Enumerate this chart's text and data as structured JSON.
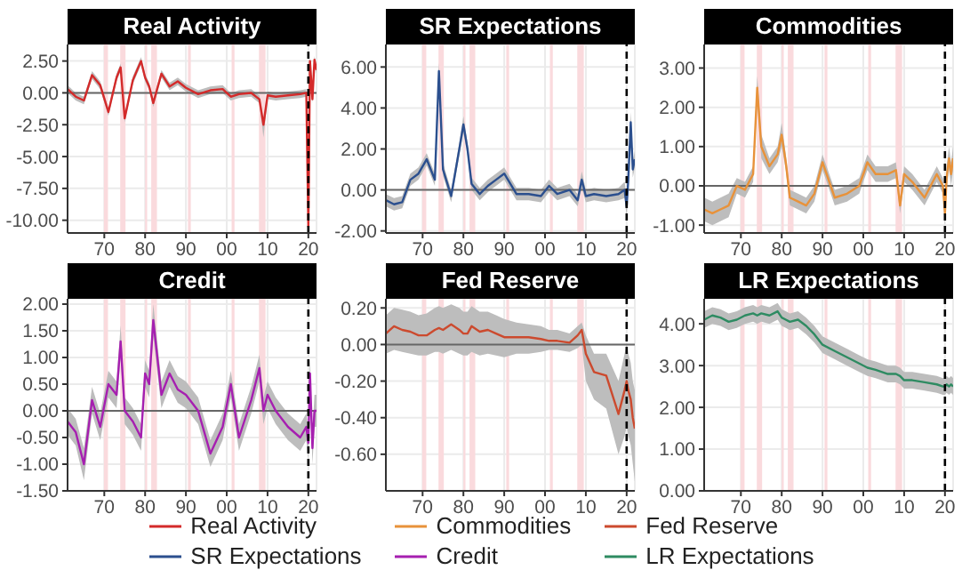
{
  "chart_data": [
    {
      "type": "line",
      "title": "Real Activity",
      "x": [
        1961,
        1963,
        1965,
        1967,
        1969,
        1971,
        1973,
        1974,
        1975,
        1977,
        1979,
        1980,
        1981,
        1982,
        1984,
        1986,
        1988,
        1990,
        1993,
        1996,
        1999,
        2001,
        2003,
        2006,
        2008,
        2009,
        2010,
        2012,
        2015,
        2018,
        2019.5,
        2020,
        2020.4,
        2021,
        2021.5,
        2022
      ],
      "series": [
        {
          "name": "Real Activity",
          "color": "#d42a2a",
          "values": [
            0.3,
            -0.3,
            -0.6,
            1.4,
            0.6,
            -1.5,
            1.2,
            2.0,
            -2.0,
            1.0,
            2.5,
            1.2,
            0.5,
            -0.8,
            1.5,
            0.5,
            0.9,
            0.4,
            -0.1,
            0.2,
            0.3,
            -0.3,
            -0.1,
            0.0,
            -0.5,
            -2.5,
            -0.2,
            -0.3,
            -0.2,
            -0.1,
            0.0,
            -10.5,
            2.5,
            -0.5,
            2.6,
            1.8
          ],
          "lower": [
            0.0,
            -0.6,
            -0.9,
            1.1,
            0.3,
            -1.8,
            0.9,
            1.7,
            -2.3,
            0.7,
            2.2,
            0.9,
            0.2,
            -1.1,
            1.2,
            0.2,
            0.6,
            0.1,
            -0.4,
            -0.1,
            0.0,
            -0.6,
            -0.4,
            -0.3,
            -0.8,
            -3.5,
            -0.5,
            -0.6,
            -0.5,
            -0.4,
            -0.3,
            -10.8,
            2.2,
            -0.8,
            2.3,
            1.5
          ],
          "upper": [
            0.6,
            0.0,
            -0.3,
            1.7,
            0.9,
            -1.2,
            1.5,
            2.3,
            -1.7,
            1.3,
            2.8,
            1.5,
            0.8,
            -0.5,
            1.8,
            0.8,
            1.2,
            0.7,
            0.2,
            0.5,
            0.6,
            0.0,
            0.2,
            0.3,
            -0.2,
            -2.0,
            0.1,
            0.0,
            0.1,
            0.2,
            0.3,
            -10.2,
            2.8,
            -0.2,
            2.9,
            2.1
          ]
        }
      ],
      "xlim": [
        1961,
        2022
      ],
      "xticks": [
        {
          "value": 1970,
          "label": "70"
        },
        {
          "value": 1980,
          "label": "80"
        },
        {
          "value": 1990,
          "label": "90"
        },
        {
          "value": 2000,
          "label": "00"
        },
        {
          "value": 2010,
          "label": "10"
        },
        {
          "value": 2020,
          "label": "20"
        }
      ],
      "ylim": [
        -11,
        3.8
      ],
      "yticks": [
        {
          "value": -10,
          "label": "-10.00"
        },
        {
          "value": -7.5,
          "label": "-7.50"
        },
        {
          "value": -5,
          "label": "-5.00"
        },
        {
          "value": -2.5,
          "label": "-2.50"
        },
        {
          "value": 0,
          "label": "0.00"
        },
        {
          "value": 2.5,
          "label": "2.50"
        }
      ],
      "grid": true,
      "legend": "bottom",
      "ref_lines": [
        {
          "axis": "y",
          "value": 0,
          "color": "#666666"
        },
        {
          "axis": "x",
          "value": 2020,
          "color": "#000000",
          "line_style": "dashed"
        }
      ],
      "bands": [
        {
          "axis": "x",
          "from": 1969.9,
          "to": 1970.9,
          "color": "#fadadd"
        },
        {
          "axis": "x",
          "from": 1973.9,
          "to": 1975.2,
          "color": "#fadadd"
        },
        {
          "axis": "x",
          "from": 1980.0,
          "to": 1980.5,
          "color": "#fadadd"
        },
        {
          "axis": "x",
          "from": 1981.5,
          "to": 1982.9,
          "color": "#fadadd"
        },
        {
          "axis": "x",
          "from": 1990.5,
          "to": 1991.2,
          "color": "#fadadd"
        },
        {
          "axis": "x",
          "from": 2001.2,
          "to": 2001.9,
          "color": "#fadadd"
        },
        {
          "axis": "x",
          "from": 2007.9,
          "to": 2009.5,
          "color": "#fadadd"
        }
      ]
    },
    {
      "type": "line",
      "title": "SR Expectations",
      "x": [
        1961,
        1963,
        1965,
        1967,
        1969,
        1971,
        1973,
        1974,
        1975,
        1977,
        1979,
        1980,
        1981,
        1982,
        1984,
        1986,
        1988,
        1990,
        1993,
        1996,
        1999,
        2001,
        2003,
        2006,
        2008,
        2009,
        2010,
        2012,
        2015,
        2018,
        2019.5,
        2020,
        2020.4,
        2021,
        2021.5,
        2022
      ],
      "series": [
        {
          "name": "SR Expectations",
          "color": "#2b4f8e",
          "values": [
            -0.5,
            -0.7,
            -0.6,
            0.5,
            0.8,
            1.5,
            0.5,
            5.8,
            1.0,
            -0.3,
            2.0,
            3.2,
            2.0,
            0.3,
            -0.2,
            0.2,
            0.5,
            0.8,
            -0.2,
            -0.2,
            -0.3,
            0.2,
            -0.2,
            0.0,
            -0.5,
            0.5,
            -0.3,
            -0.2,
            -0.3,
            -0.2,
            0.0,
            -0.8,
            0.5,
            3.3,
            1.0,
            1.5
          ],
          "lower": [
            -0.8,
            -1.0,
            -0.9,
            0.2,
            0.5,
            1.2,
            0.2,
            5.4,
            0.7,
            -0.6,
            1.7,
            2.8,
            1.7,
            0.0,
            -0.5,
            -0.1,
            0.2,
            0.5,
            -0.5,
            -0.5,
            -0.6,
            -0.1,
            -0.5,
            -0.3,
            -0.8,
            0.1,
            -0.6,
            -0.5,
            -0.6,
            -0.5,
            -0.4,
            -1.3,
            0.1,
            2.8,
            0.6,
            1.1
          ],
          "upper": [
            -0.2,
            -0.4,
            -0.3,
            0.8,
            1.1,
            1.8,
            0.8,
            6.2,
            1.3,
            0.0,
            2.3,
            3.6,
            2.3,
            0.6,
            0.1,
            0.5,
            0.8,
            1.1,
            0.1,
            0.1,
            0.0,
            0.5,
            0.1,
            0.3,
            -0.2,
            0.9,
            0.0,
            0.1,
            0.0,
            0.1,
            0.4,
            -0.3,
            0.9,
            3.8,
            1.4,
            1.9
          ]
        }
      ],
      "xlim": [
        1961,
        2022
      ],
      "xticks": [
        {
          "value": 1970,
          "label": "70"
        },
        {
          "value": 1980,
          "label": "80"
        },
        {
          "value": 1990,
          "label": "90"
        },
        {
          "value": 2000,
          "label": "00"
        },
        {
          "value": 2010,
          "label": "10"
        },
        {
          "value": 2020,
          "label": "20"
        }
      ],
      "ylim": [
        -2.1,
        7.1
      ],
      "yticks": [
        {
          "value": -2,
          "label": "-2.00"
        },
        {
          "value": 0,
          "label": "0.00"
        },
        {
          "value": 2,
          "label": "2.00"
        },
        {
          "value": 4,
          "label": "4.00"
        },
        {
          "value": 6,
          "label": "6.00"
        }
      ],
      "grid": true,
      "legend": "bottom",
      "ref_lines": [
        {
          "axis": "y",
          "value": 0,
          "color": "#666666"
        },
        {
          "axis": "x",
          "value": 2020,
          "color": "#000000",
          "line_style": "dashed"
        }
      ],
      "bands": [
        {
          "axis": "x",
          "from": 1969.9,
          "to": 1970.9,
          "color": "#fadadd"
        },
        {
          "axis": "x",
          "from": 1973.9,
          "to": 1975.2,
          "color": "#fadadd"
        },
        {
          "axis": "x",
          "from": 1980.0,
          "to": 1980.5,
          "color": "#fadadd"
        },
        {
          "axis": "x",
          "from": 1981.5,
          "to": 1982.9,
          "color": "#fadadd"
        },
        {
          "axis": "x",
          "from": 1990.5,
          "to": 1991.2,
          "color": "#fadadd"
        },
        {
          "axis": "x",
          "from": 2001.2,
          "to": 2001.9,
          "color": "#fadadd"
        },
        {
          "axis": "x",
          "from": 2007.9,
          "to": 2009.5,
          "color": "#fadadd"
        }
      ]
    },
    {
      "type": "line",
      "title": "Commodities",
      "x": [
        1961,
        1963,
        1965,
        1967,
        1969,
        1971,
        1973,
        1974,
        1975,
        1977,
        1979,
        1980,
        1981,
        1982,
        1984,
        1986,
        1988,
        1990,
        1993,
        1996,
        1999,
        2001,
        2003,
        2006,
        2008,
        2009,
        2010,
        2012,
        2015,
        2018,
        2019.5,
        2020,
        2020.4,
        2021,
        2021.5,
        2022
      ],
      "series": [
        {
          "name": "Commodities",
          "color": "#e8923a",
          "values": [
            -0.6,
            -0.7,
            -0.6,
            -0.5,
            0.0,
            -0.1,
            0.3,
            2.5,
            1.0,
            0.5,
            0.8,
            1.3,
            0.6,
            -0.3,
            -0.4,
            -0.5,
            -0.2,
            0.6,
            -0.3,
            -0.2,
            0.0,
            0.6,
            0.3,
            0.3,
            0.4,
            -0.5,
            0.3,
            0.1,
            -0.3,
            0.3,
            0.0,
            -0.7,
            0.2,
            0.7,
            0.3,
            0.7
          ],
          "lower": [
            -0.9,
            -1.0,
            -0.9,
            -0.8,
            -0.2,
            -0.3,
            0.1,
            2.2,
            0.7,
            0.3,
            0.6,
            1.0,
            0.4,
            -0.5,
            -0.6,
            -0.7,
            -0.4,
            0.4,
            -0.5,
            -0.4,
            -0.2,
            0.4,
            0.1,
            0.1,
            0.2,
            -0.7,
            0.1,
            -0.1,
            -0.5,
            0.1,
            -0.2,
            -1.0,
            -0.1,
            0.4,
            0.0,
            0.4
          ],
          "upper": [
            -0.3,
            -0.4,
            -0.3,
            -0.2,
            0.2,
            0.1,
            0.5,
            2.8,
            1.3,
            0.7,
            1.0,
            1.6,
            0.8,
            -0.1,
            -0.2,
            -0.3,
            0.0,
            0.8,
            -0.1,
            0.0,
            0.2,
            0.8,
            0.5,
            0.5,
            0.6,
            -0.3,
            0.5,
            0.3,
            -0.1,
            0.5,
            0.2,
            -0.4,
            0.5,
            1.0,
            0.6,
            1.0
          ]
        }
      ],
      "xlim": [
        1961,
        2022
      ],
      "xticks": [
        {
          "value": 1970,
          "label": "70"
        },
        {
          "value": 1980,
          "label": "80"
        },
        {
          "value": 1990,
          "label": "90"
        },
        {
          "value": 2000,
          "label": "00"
        },
        {
          "value": 2010,
          "label": "10"
        },
        {
          "value": 2020,
          "label": "20"
        }
      ],
      "ylim": [
        -1.2,
        3.6
      ],
      "yticks": [
        {
          "value": -1,
          "label": "-1.00"
        },
        {
          "value": 0,
          "label": "0.00"
        },
        {
          "value": 1,
          "label": "1.00"
        },
        {
          "value": 2,
          "label": "2.00"
        },
        {
          "value": 3,
          "label": "3.00"
        }
      ],
      "grid": true,
      "legend": "bottom",
      "ref_lines": [
        {
          "axis": "y",
          "value": 0,
          "color": "#666666"
        },
        {
          "axis": "x",
          "value": 2020,
          "color": "#000000",
          "line_style": "dashed"
        }
      ],
      "bands": [
        {
          "axis": "x",
          "from": 1969.9,
          "to": 1970.9,
          "color": "#fadadd"
        },
        {
          "axis": "x",
          "from": 1973.9,
          "to": 1975.2,
          "color": "#fadadd"
        },
        {
          "axis": "x",
          "from": 1980.0,
          "to": 1980.5,
          "color": "#fadadd"
        },
        {
          "axis": "x",
          "from": 1981.5,
          "to": 1982.9,
          "color": "#fadadd"
        },
        {
          "axis": "x",
          "from": 1990.5,
          "to": 1991.2,
          "color": "#fadadd"
        },
        {
          "axis": "x",
          "from": 2001.2,
          "to": 2001.9,
          "color": "#fadadd"
        },
        {
          "axis": "x",
          "from": 2007.9,
          "to": 2009.5,
          "color": "#fadadd"
        }
      ]
    },
    {
      "type": "line",
      "title": "Credit",
      "x": [
        1961,
        1963,
        1965,
        1967,
        1969,
        1971,
        1973,
        1974,
        1975,
        1977,
        1979,
        1980,
        1981,
        1982,
        1984,
        1986,
        1988,
        1990,
        1993,
        1996,
        1999,
        2001,
        2003,
        2006,
        2008,
        2009,
        2010,
        2012,
        2015,
        2018,
        2019.5,
        2020,
        2020.4,
        2021,
        2021.5,
        2022
      ],
      "series": [
        {
          "name": "Credit",
          "color": "#a61fb0",
          "values": [
            -0.2,
            -0.4,
            -1.0,
            0.2,
            -0.3,
            0.5,
            0.3,
            1.3,
            0.0,
            -0.2,
            -0.5,
            0.7,
            0.5,
            1.7,
            0.3,
            0.7,
            0.4,
            0.3,
            0.0,
            -0.8,
            -0.3,
            0.5,
            -0.5,
            0.2,
            0.8,
            0.0,
            0.3,
            0.0,
            -0.3,
            -0.5,
            -0.3,
            -0.6,
            0.7,
            -0.7,
            0.0,
            0.0
          ],
          "lower": [
            -0.45,
            -0.65,
            -1.3,
            -0.05,
            -0.55,
            0.25,
            0.05,
            1.0,
            -0.25,
            -0.45,
            -0.75,
            0.45,
            0.25,
            1.4,
            0.05,
            0.45,
            0.15,
            0.05,
            -0.25,
            -1.05,
            -0.55,
            0.25,
            -0.75,
            -0.05,
            0.55,
            -0.25,
            0.05,
            -0.25,
            -0.55,
            -0.75,
            -0.55,
            -0.9,
            0.4,
            -1.0,
            -0.3,
            -0.3
          ],
          "upper": [
            0.05,
            -0.15,
            -0.7,
            0.45,
            -0.05,
            0.75,
            0.55,
            1.6,
            0.25,
            0.05,
            -0.25,
            0.95,
            0.75,
            2.0,
            0.55,
            0.95,
            0.65,
            0.55,
            0.25,
            -0.55,
            -0.05,
            0.75,
            -0.25,
            0.45,
            1.05,
            0.25,
            0.55,
            0.25,
            -0.05,
            -0.25,
            -0.05,
            -0.3,
            1.0,
            -0.4,
            0.3,
            0.3
          ]
        }
      ],
      "xlim": [
        1961,
        2022
      ],
      "xticks": [
        {
          "value": 1970,
          "label": "70"
        },
        {
          "value": 1980,
          "label": "80"
        },
        {
          "value": 1990,
          "label": "90"
        },
        {
          "value": 2000,
          "label": "00"
        },
        {
          "value": 2010,
          "label": "10"
        },
        {
          "value": 2020,
          "label": "20"
        }
      ],
      "ylim": [
        -1.5,
        2.1
      ],
      "yticks": [
        {
          "value": -1.5,
          "label": "-1.50"
        },
        {
          "value": -1,
          "label": "-1.00"
        },
        {
          "value": -0.5,
          "label": "-0.50"
        },
        {
          "value": 0,
          "label": "0.00"
        },
        {
          "value": 0.5,
          "label": "0.50"
        },
        {
          "value": 1,
          "label": "1.00"
        },
        {
          "value": 1.5,
          "label": "1.50"
        },
        {
          "value": 2,
          "label": "2.00"
        }
      ],
      "grid": true,
      "legend": "bottom",
      "ref_lines": [
        {
          "axis": "y",
          "value": 0,
          "color": "#666666"
        },
        {
          "axis": "x",
          "value": 2020,
          "color": "#000000",
          "line_style": "dashed"
        }
      ],
      "bands": [
        {
          "axis": "x",
          "from": 1969.9,
          "to": 1970.9,
          "color": "#fadadd"
        },
        {
          "axis": "x",
          "from": 1973.9,
          "to": 1975.2,
          "color": "#fadadd"
        },
        {
          "axis": "x",
          "from": 1980.0,
          "to": 1980.5,
          "color": "#fadadd"
        },
        {
          "axis": "x",
          "from": 1981.5,
          "to": 1982.9,
          "color": "#fadadd"
        },
        {
          "axis": "x",
          "from": 1990.5,
          "to": 1991.2,
          "color": "#fadadd"
        },
        {
          "axis": "x",
          "from": 2001.2,
          "to": 2001.9,
          "color": "#fadadd"
        },
        {
          "axis": "x",
          "from": 2007.9,
          "to": 2009.5,
          "color": "#fadadd"
        }
      ]
    },
    {
      "type": "line",
      "title": "Fed Reserve",
      "x": [
        1961,
        1963,
        1965,
        1967,
        1969,
        1971,
        1973,
        1974,
        1975,
        1977,
        1979,
        1980,
        1981,
        1982,
        1984,
        1986,
        1988,
        1990,
        1993,
        1996,
        1999,
        2001,
        2003,
        2006,
        2008,
        2009,
        2010,
        2012,
        2015,
        2018,
        2019.5,
        2020,
        2020.4,
        2021,
        2021.5,
        2022
      ],
      "series": [
        {
          "name": "Fed Reserve",
          "color": "#cc4a2e",
          "values": [
            0.06,
            0.1,
            0.08,
            0.07,
            0.05,
            0.05,
            0.08,
            0.09,
            0.08,
            0.11,
            0.08,
            0.06,
            0.06,
            0.1,
            0.07,
            0.08,
            0.06,
            0.04,
            0.04,
            0.04,
            0.03,
            0.02,
            0.02,
            0.01,
            0.05,
            0.08,
            -0.05,
            -0.15,
            -0.17,
            -0.38,
            -0.25,
            -0.2,
            -0.25,
            -0.3,
            -0.4,
            -0.46
          ],
          "lower": [
            -0.05,
            -0.03,
            -0.04,
            -0.05,
            -0.06,
            -0.06,
            -0.04,
            -0.04,
            -0.05,
            -0.03,
            -0.05,
            -0.06,
            -0.06,
            -0.04,
            -0.06,
            -0.05,
            -0.06,
            -0.07,
            -0.05,
            -0.05,
            -0.04,
            -0.03,
            -0.03,
            -0.04,
            -0.02,
            0.0,
            -0.2,
            -0.3,
            -0.35,
            -0.6,
            -0.5,
            -0.45,
            -0.5,
            -0.55,
            -0.65,
            -0.75
          ],
          "upper": [
            0.16,
            0.2,
            0.19,
            0.18,
            0.16,
            0.17,
            0.2,
            0.21,
            0.2,
            0.22,
            0.2,
            0.18,
            0.18,
            0.21,
            0.18,
            0.18,
            0.16,
            0.14,
            0.12,
            0.11,
            0.1,
            0.08,
            0.08,
            0.06,
            0.1,
            0.12,
            0.05,
            -0.05,
            -0.05,
            -0.2,
            -0.05,
            0.0,
            -0.05,
            -0.1,
            -0.2,
            -0.25
          ]
        }
      ],
      "xlim": [
        1961,
        2022
      ],
      "xticks": [
        {
          "value": 1970,
          "label": "70"
        },
        {
          "value": 1980,
          "label": "80"
        },
        {
          "value": 1990,
          "label": "90"
        },
        {
          "value": 2000,
          "label": "00"
        },
        {
          "value": 2010,
          "label": "10"
        },
        {
          "value": 2020,
          "label": "20"
        }
      ],
      "ylim": [
        -0.8,
        0.25
      ],
      "yticks": [
        {
          "value": -0.6,
          "label": "-0.60"
        },
        {
          "value": -0.4,
          "label": "-0.40"
        },
        {
          "value": -0.2,
          "label": "-0.20"
        },
        {
          "value": 0,
          "label": "0.00"
        },
        {
          "value": 0.2,
          "label": "0.20"
        }
      ],
      "grid": true,
      "legend": "bottom",
      "ref_lines": [
        {
          "axis": "y",
          "value": 0,
          "color": "#666666"
        },
        {
          "axis": "x",
          "value": 2020,
          "color": "#000000",
          "line_style": "dashed"
        }
      ],
      "bands": [
        {
          "axis": "x",
          "from": 1969.9,
          "to": 1970.9,
          "color": "#fadadd"
        },
        {
          "axis": "x",
          "from": 1973.9,
          "to": 1975.2,
          "color": "#fadadd"
        },
        {
          "axis": "x",
          "from": 1980.0,
          "to": 1980.5,
          "color": "#fadadd"
        },
        {
          "axis": "x",
          "from": 1981.5,
          "to": 1982.9,
          "color": "#fadadd"
        },
        {
          "axis": "x",
          "from": 1990.5,
          "to": 1991.2,
          "color": "#fadadd"
        },
        {
          "axis": "x",
          "from": 2001.2,
          "to": 2001.9,
          "color": "#fadadd"
        },
        {
          "axis": "x",
          "from": 2007.9,
          "to": 2009.5,
          "color": "#fadadd"
        }
      ]
    },
    {
      "type": "line",
      "title": "LR Expectations",
      "x": [
        1961,
        1963,
        1965,
        1967,
        1969,
        1971,
        1973,
        1974,
        1975,
        1977,
        1979,
        1980,
        1981,
        1982,
        1984,
        1986,
        1988,
        1990,
        1993,
        1996,
        1999,
        2001,
        2003,
        2006,
        2008,
        2009,
        2010,
        2012,
        2015,
        2018,
        2019.5,
        2020,
        2020.4,
        2021,
        2021.5,
        2022
      ],
      "series": [
        {
          "name": "LR Expectations",
          "color": "#2e8b62",
          "values": [
            4.1,
            4.2,
            4.15,
            4.05,
            4.1,
            4.2,
            4.25,
            4.2,
            4.25,
            4.2,
            4.3,
            4.15,
            4.1,
            4.05,
            4.1,
            3.95,
            3.75,
            3.5,
            3.35,
            3.2,
            3.05,
            2.95,
            2.9,
            2.8,
            2.8,
            2.75,
            2.65,
            2.65,
            2.6,
            2.55,
            2.5,
            2.5,
            2.55,
            2.5,
            2.55,
            2.5
          ],
          "lower": [
            3.9,
            4.0,
            3.95,
            3.85,
            3.9,
            4.0,
            4.05,
            4.0,
            4.05,
            4.0,
            4.1,
            3.95,
            3.9,
            3.85,
            3.9,
            3.75,
            3.55,
            3.3,
            3.15,
            3.0,
            2.85,
            2.75,
            2.7,
            2.6,
            2.6,
            2.55,
            2.45,
            2.45,
            2.4,
            2.35,
            2.3,
            2.3,
            2.35,
            2.3,
            2.35,
            2.3
          ],
          "upper": [
            4.3,
            4.4,
            4.35,
            4.25,
            4.3,
            4.4,
            4.45,
            4.4,
            4.45,
            4.4,
            4.5,
            4.35,
            4.3,
            4.25,
            4.3,
            4.15,
            3.95,
            3.7,
            3.55,
            3.4,
            3.25,
            3.15,
            3.1,
            3.0,
            3.0,
            2.95,
            2.85,
            2.85,
            2.8,
            2.75,
            2.7,
            2.7,
            2.75,
            2.7,
            2.75,
            2.7
          ]
        }
      ],
      "xlim": [
        1961,
        2022
      ],
      "xticks": [
        {
          "value": 1970,
          "label": "70"
        },
        {
          "value": 1980,
          "label": "80"
        },
        {
          "value": 1990,
          "label": "90"
        },
        {
          "value": 2000,
          "label": "00"
        },
        {
          "value": 2010,
          "label": "10"
        },
        {
          "value": 2020,
          "label": "20"
        }
      ],
      "ylim": [
        0,
        4.6
      ],
      "yticks": [
        {
          "value": 0,
          "label": "0.00"
        },
        {
          "value": 1,
          "label": "1.00"
        },
        {
          "value": 2,
          "label": "2.00"
        },
        {
          "value": 3,
          "label": "3.00"
        },
        {
          "value": 4,
          "label": "4.00"
        }
      ],
      "grid": true,
      "legend": "bottom",
      "ref_lines": [
        {
          "axis": "x",
          "value": 2020,
          "color": "#000000",
          "line_style": "dashed"
        }
      ],
      "bands": [
        {
          "axis": "x",
          "from": 1969.9,
          "to": 1970.9,
          "color": "#fadadd"
        },
        {
          "axis": "x",
          "from": 1973.9,
          "to": 1975.2,
          "color": "#fadadd"
        },
        {
          "axis": "x",
          "from": 1980.0,
          "to": 1980.5,
          "color": "#fadadd"
        },
        {
          "axis": "x",
          "from": 1981.5,
          "to": 1982.9,
          "color": "#fadadd"
        },
        {
          "axis": "x",
          "from": 1990.5,
          "to": 1991.2,
          "color": "#fadadd"
        },
        {
          "axis": "x",
          "from": 2001.2,
          "to": 2001.9,
          "color": "#fadadd"
        },
        {
          "axis": "x",
          "from": 2007.9,
          "to": 2009.5,
          "color": "#fadadd"
        }
      ]
    }
  ]
}
